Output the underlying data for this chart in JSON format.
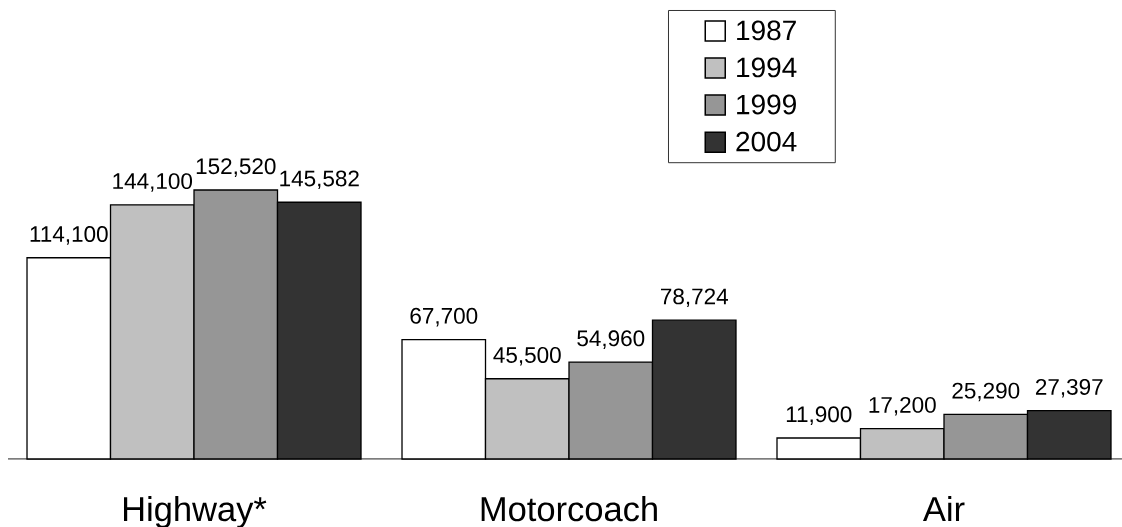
{
  "chart_data": {
    "type": "bar",
    "categories": [
      "Highway*",
      "Motorcoach",
      "Air"
    ],
    "series": [
      {
        "name": "1987",
        "color": "#ffffff",
        "values": [
          114100,
          67700,
          11900
        ],
        "value_labels": [
          "114,100",
          "67,700",
          "11,900"
        ]
      },
      {
        "name": "1994",
        "color": "#c0c0c0",
        "values": [
          144100,
          45500,
          17200
        ],
        "value_labels": [
          "144,100",
          "45,500",
          "17,200"
        ]
      },
      {
        "name": "1999",
        "color": "#969696",
        "values": [
          152520,
          54960,
          25290
        ],
        "value_labels": [
          "152,520",
          "54,960",
          "25,290"
        ]
      },
      {
        "name": "2004",
        "color": "#333333",
        "values": [
          145582,
          78724,
          27397
        ],
        "value_labels": [
          "145,582",
          "78,724",
          "27,397"
        ]
      }
    ],
    "legend": "top right"
  }
}
